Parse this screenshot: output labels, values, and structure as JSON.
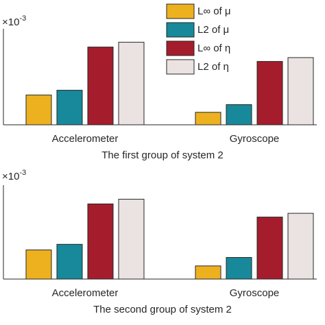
{
  "charts": [
    {
      "type": "bar",
      "title": "The first group of system 2",
      "exponent": {
        "base": "×10",
        "power": "-3"
      },
      "categories": [
        "Accelerometer",
        "Gyroscope"
      ],
      "series": [
        {
          "name": "L∞ of μ",
          "color": "#EDB120",
          "values": [
            0.31,
            0.13
          ]
        },
        {
          "name": "L2 of μ",
          "color": "#17899A",
          "values": [
            0.36,
            0.21
          ]
        },
        {
          "name": "L∞ of η",
          "color": "#A51D2D",
          "values": [
            0.81,
            0.66
          ]
        },
        {
          "name": "L2 of η",
          "color": "#EAE3E1",
          "values": [
            0.86,
            0.7
          ]
        }
      ],
      "ylim": [
        0,
        1
      ],
      "legend": "upper right"
    },
    {
      "type": "bar",
      "title": "The second group of system 2",
      "exponent": {
        "base": "×10",
        "power": "-3"
      },
      "categories": [
        "Accelerometer",
        "Gyroscope"
      ],
      "series": [
        {
          "color": "#EDB120",
          "values": [
            0.31,
            0.14
          ]
        },
        {
          "color": "#17899A",
          "values": [
            0.37,
            0.23
          ]
        },
        {
          "color": "#A51D2D",
          "values": [
            0.8,
            0.66
          ]
        },
        {
          "color": "#EAE3E1",
          "values": [
            0.85,
            0.7
          ]
        }
      ],
      "ylim": [
        0,
        1
      ]
    }
  ]
}
